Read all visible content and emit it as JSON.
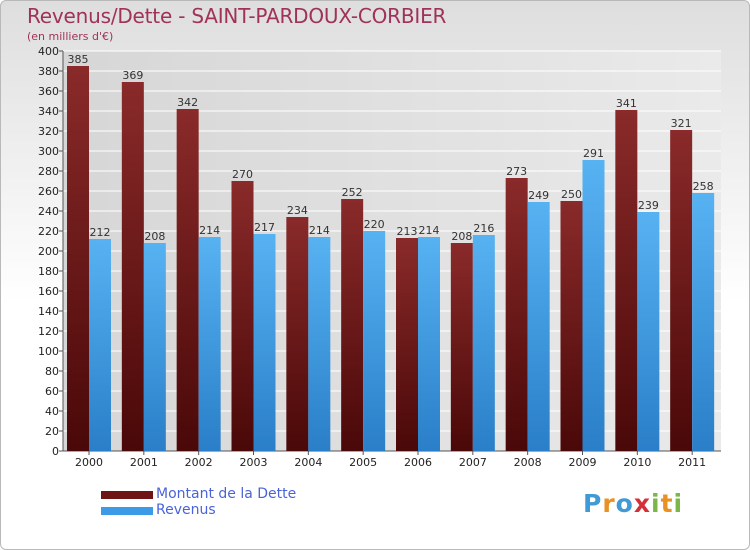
{
  "title": "Revenus/Dette - SAINT-PARDOUX-CORBIER",
  "subtitle": "(en milliers d'€)",
  "logo": {
    "text": "Proxiti",
    "letters": [
      {
        "ch": "P",
        "color": "#3f9ad6"
      },
      {
        "ch": "r",
        "color": "#e89224"
      },
      {
        "ch": "o",
        "color": "#3f9ad6"
      },
      {
        "ch": "x",
        "color": "#d3303a"
      },
      {
        "ch": "i",
        "color": "#7ab648"
      },
      {
        "ch": "t",
        "color": "#e89224"
      },
      {
        "ch": "i",
        "color": "#7ab648"
      }
    ]
  },
  "colors": {
    "dette": "#7d2020",
    "revenus": "#3d9ae6",
    "grid": "#ffffff",
    "plot_bg": "#dcdcdc"
  },
  "chart_data": {
    "type": "bar",
    "categories": [
      "2000",
      "2001",
      "2002",
      "2003",
      "2004",
      "2005",
      "2006",
      "2007",
      "2008",
      "2009",
      "2010",
      "2011"
    ],
    "series": [
      {
        "name": "Montant de la Dette",
        "values": [
          385,
          369,
          342,
          270,
          234,
          252,
          213,
          208,
          273,
          250,
          341,
          321
        ]
      },
      {
        "name": "Revenus",
        "values": [
          212,
          208,
          214,
          217,
          214,
          220,
          214,
          216,
          249,
          291,
          239,
          258
        ]
      }
    ],
    "ylim": [
      0,
      400
    ],
    "ytick_step": 20,
    "grid": true,
    "legend_position": "bottom-left"
  }
}
